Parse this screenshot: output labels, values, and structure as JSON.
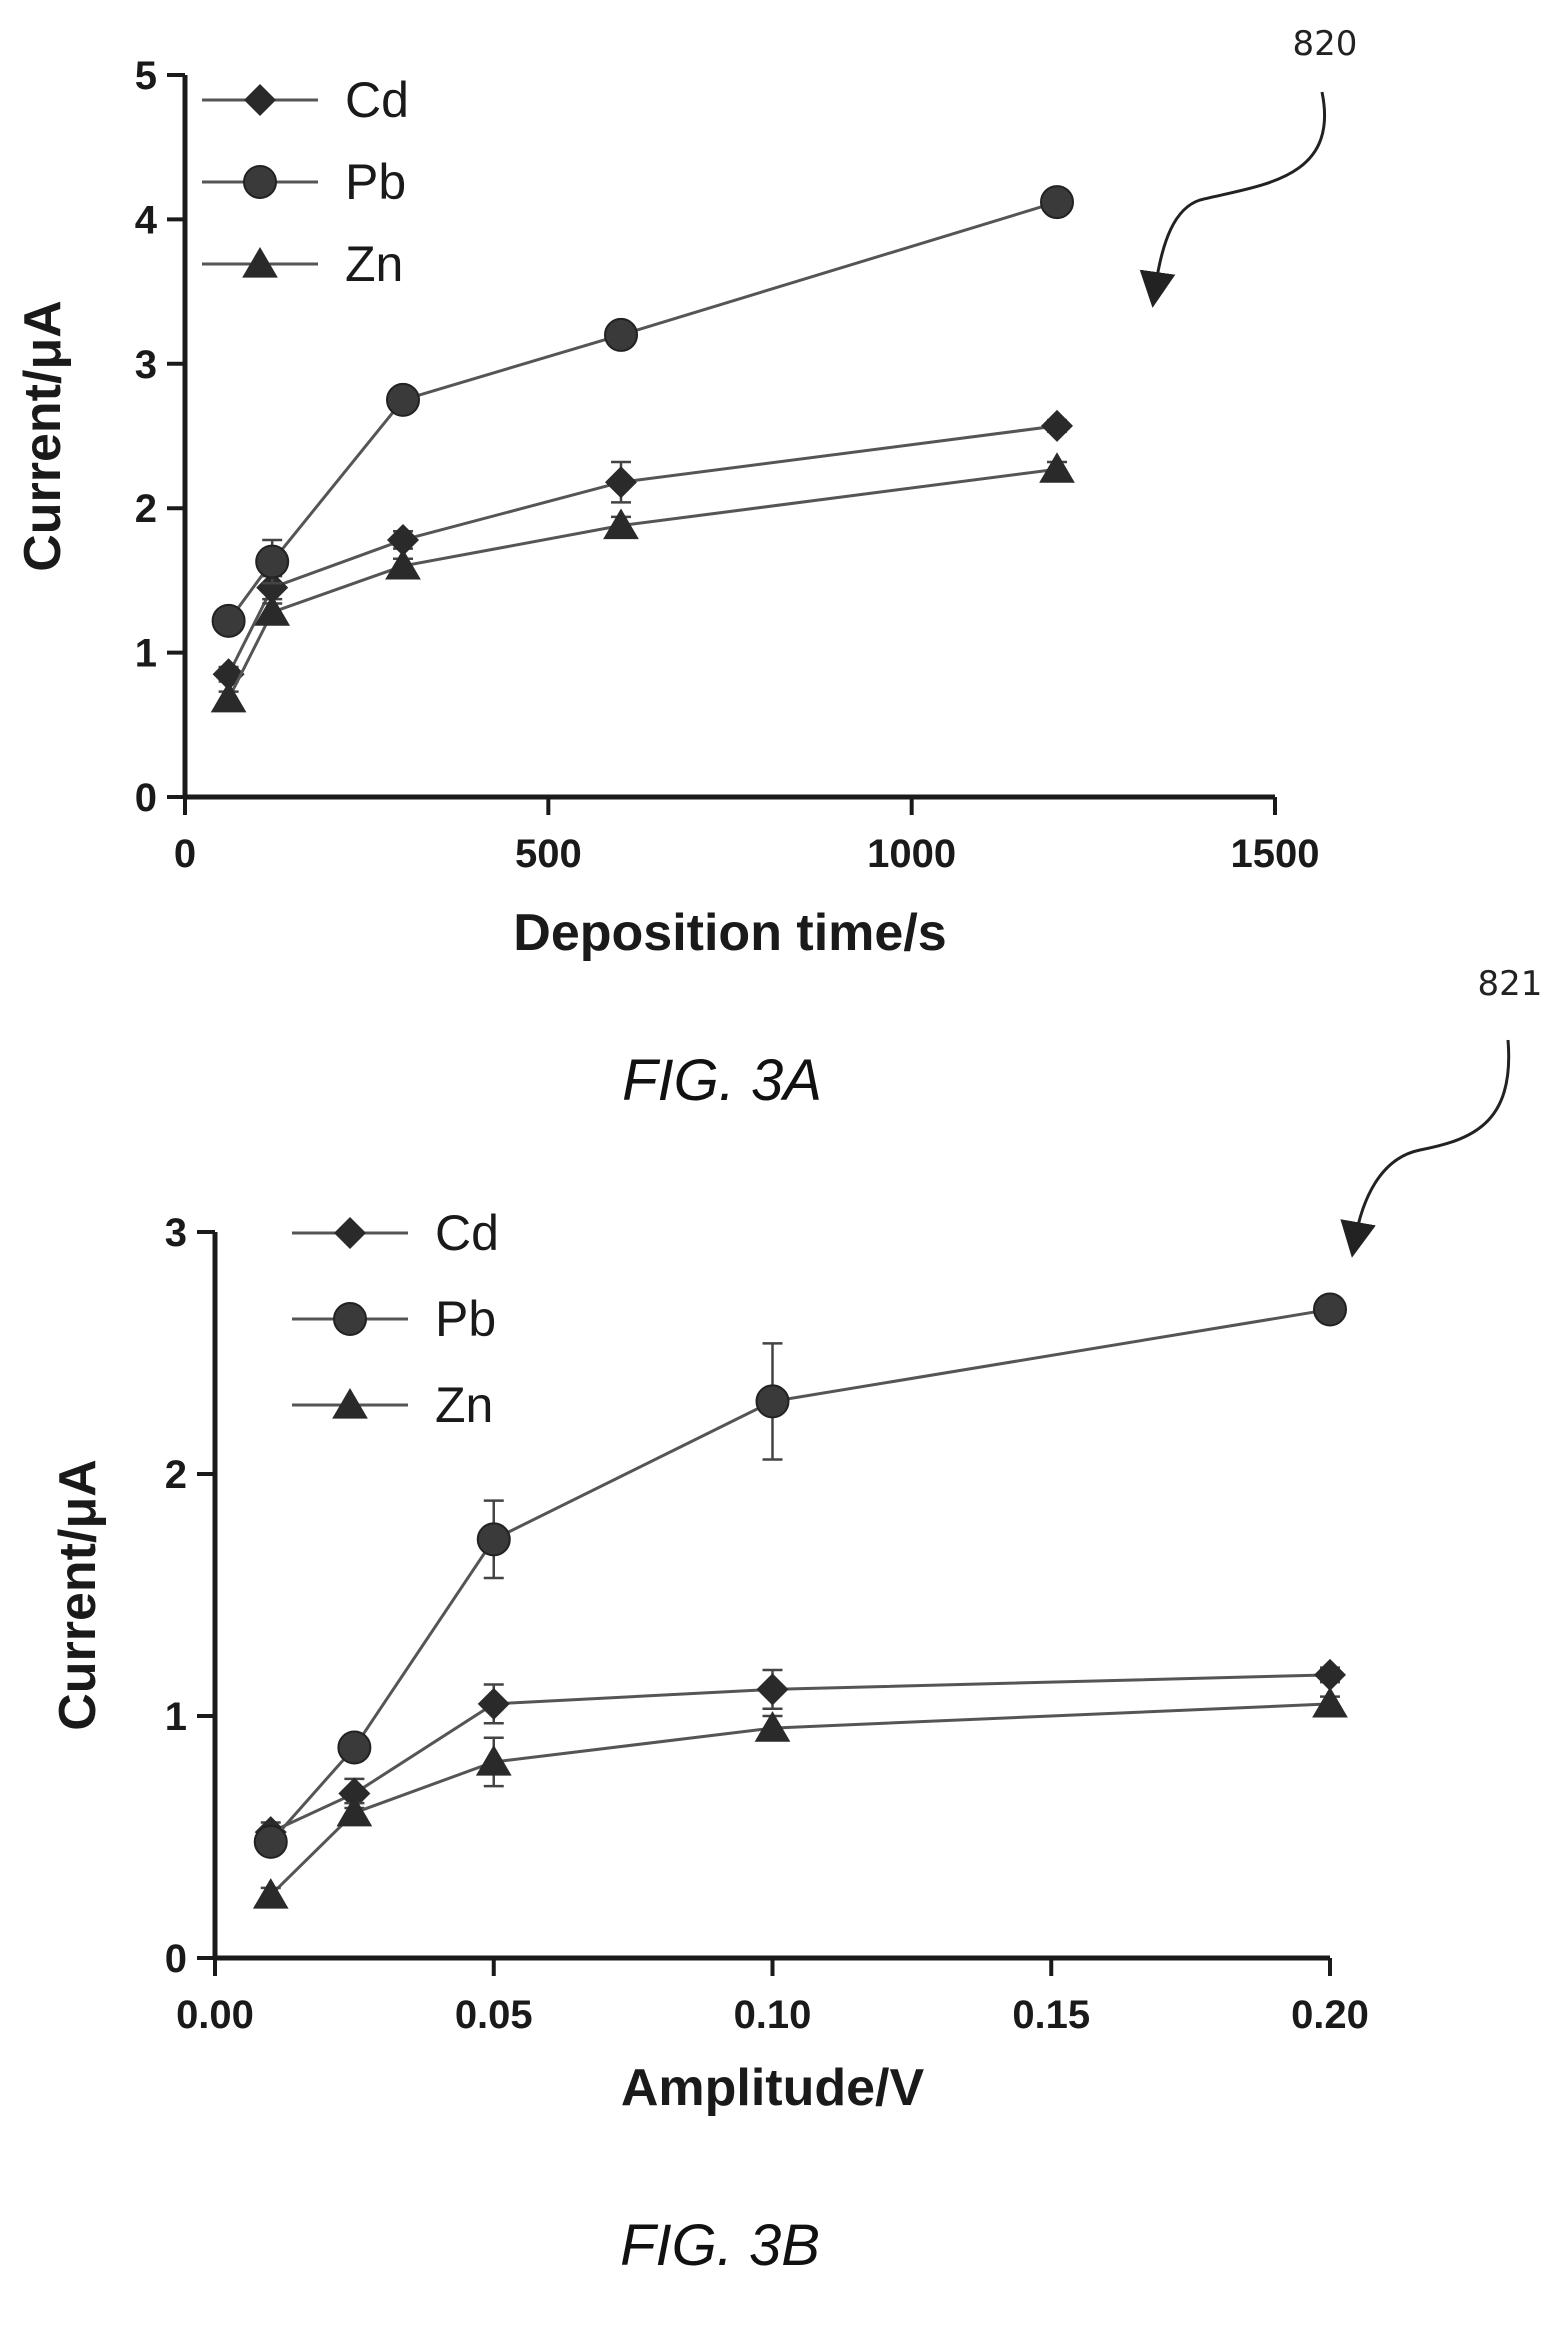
{
  "figures": [
    {
      "ref_number": "820",
      "caption": "FIG. 3A"
    },
    {
      "ref_number": "821",
      "caption": "FIG. 3B"
    }
  ],
  "chart_data": [
    {
      "type": "line",
      "xlabel": "Deposition time/s",
      "ylabel": "Current/μA",
      "xlim": [
        0,
        1500
      ],
      "ylim": [
        0,
        5
      ],
      "xticks": [
        0,
        500,
        1000,
        1500
      ],
      "xtick_labels": [
        "0",
        "500",
        "1000",
        "1500"
      ],
      "yticks": [
        0,
        1,
        2,
        3,
        4,
        5
      ],
      "ytick_labels": [
        "0",
        "1",
        "2",
        "3",
        "4",
        "5"
      ],
      "legend_position": "top-left",
      "grid": false,
      "x": [
        60,
        120,
        300,
        600,
        1200
      ],
      "series": [
        {
          "name": "Cd",
          "marker": "diamond",
          "values": [
            0.85,
            1.45,
            1.78,
            2.18,
            2.57
          ],
          "errors": [
            0.05,
            0.08,
            0.06,
            0.14,
            0.04
          ]
        },
        {
          "name": "Pb",
          "marker": "circle",
          "values": [
            1.22,
            1.63,
            2.75,
            3.2,
            4.12
          ],
          "errors": [
            0.04,
            0.15,
            0.05,
            0.05,
            0.05
          ]
        },
        {
          "name": "Zn",
          "marker": "triangle",
          "values": [
            0.68,
            1.28,
            1.6,
            1.88,
            2.27
          ],
          "errors": [
            0.05,
            0.06,
            0.05,
            0.06,
            0.05
          ]
        }
      ]
    },
    {
      "type": "line",
      "xlabel": "Amplitude/V",
      "ylabel": "Current/μA",
      "xlim": [
        0,
        0.2
      ],
      "ylim": [
        0,
        3
      ],
      "xticks": [
        0,
        0.05,
        0.1,
        0.15,
        0.2
      ],
      "xtick_labels": [
        "0.00",
        "0.05",
        "0.10",
        "0.15",
        "0.20"
      ],
      "yticks": [
        0,
        1,
        2,
        3
      ],
      "ytick_labels": [
        "0",
        "1",
        "2",
        "3"
      ],
      "legend_position": "top-left",
      "grid": false,
      "x": [
        0.01,
        0.025,
        0.05,
        0.1,
        0.2
      ],
      "series": [
        {
          "name": "Cd",
          "marker": "diamond",
          "values": [
            0.52,
            0.68,
            1.05,
            1.11,
            1.17
          ],
          "errors": [
            0.04,
            0.06,
            0.08,
            0.08,
            0.03
          ]
        },
        {
          "name": "Pb",
          "marker": "circle",
          "values": [
            0.48,
            0.87,
            1.73,
            2.3,
            2.68
          ],
          "errors": [
            0.03,
            0.03,
            0.16,
            0.24,
            0.03
          ]
        },
        {
          "name": "Zn",
          "marker": "triangle",
          "values": [
            0.26,
            0.6,
            0.81,
            0.95,
            1.05
          ],
          "errors": [
            0.03,
            0.04,
            0.1,
            0.05,
            0.03
          ]
        }
      ]
    }
  ]
}
